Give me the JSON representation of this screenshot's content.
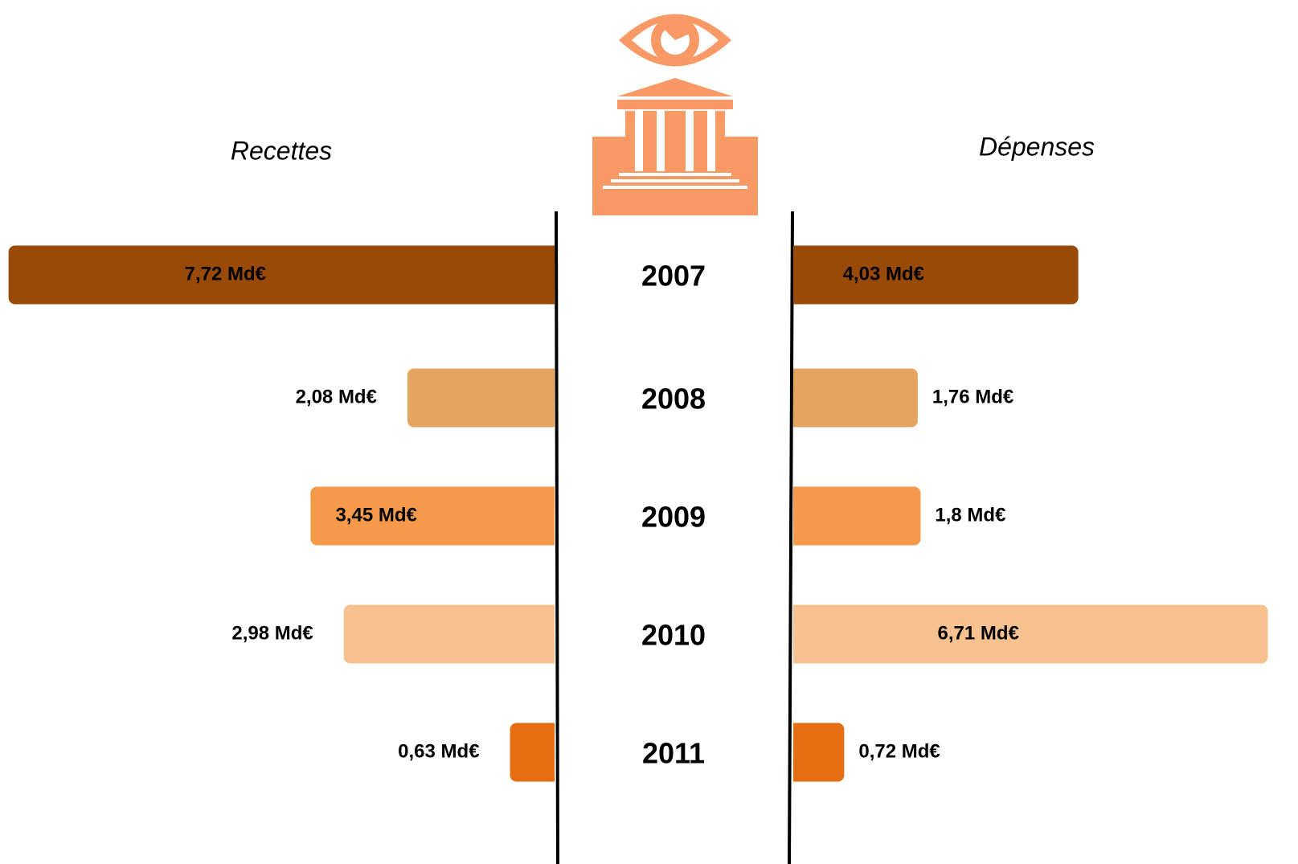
{
  "chart_data": {
    "type": "butterfly-bar",
    "categories": [
      "2007",
      "2008",
      "2009",
      "2010",
      "2011"
    ],
    "colors": [
      "#994a08",
      "#e5a560",
      "#f59a4a",
      "#f8c290",
      "#e46e10"
    ],
    "series": [
      {
        "name": "Recettes",
        "values": [
          7.72,
          2.08,
          3.45,
          2.98,
          0.63
        ],
        "value_labels": [
          "7,72 Md€",
          "2,08 Md€",
          "3,45 Md€",
          "2,98 Md€",
          "0,63 Md€"
        ]
      },
      {
        "name": "Dépenses",
        "values": [
          4.03,
          1.76,
          1.8,
          6.71,
          0.72
        ],
        "value_labels": [
          "4,03 Md€",
          "1,76 Md€",
          "1,8 Md€",
          "6,71 Md€",
          "0,72 Md€"
        ]
      }
    ]
  }
}
